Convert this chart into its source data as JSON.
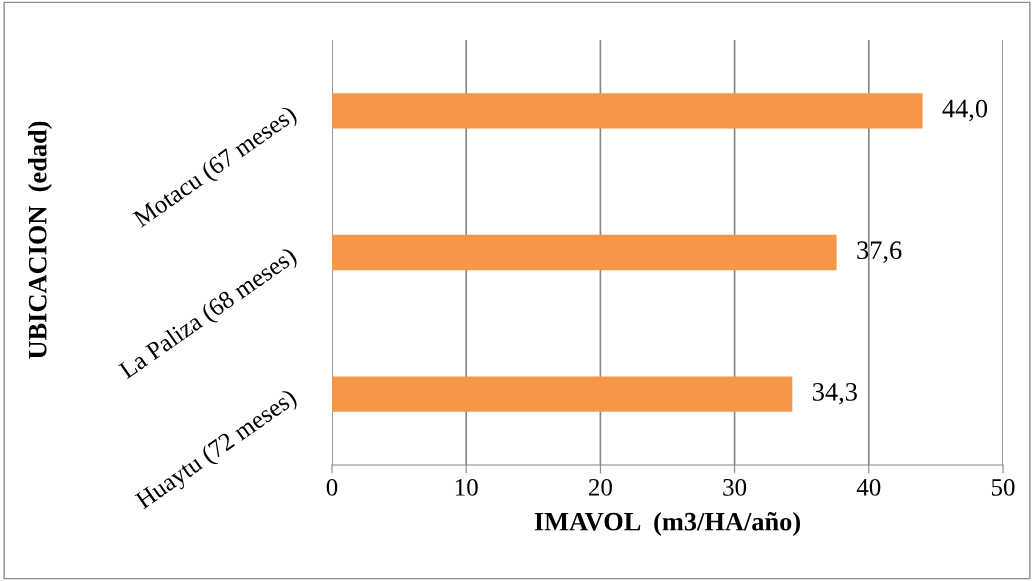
{
  "chart_data": {
    "type": "bar",
    "orientation": "horizontal",
    "xlabel": "IMAVOL  (m3/HA/año)",
    "ylabel": "UBICACION  (edad)",
    "categories": [
      "Motacu (67 meses)",
      "La Paliza (68 meses)",
      "Huaytu (72 meses)"
    ],
    "values": [
      44.0,
      37.6,
      34.3
    ],
    "value_labels": [
      "44,0",
      "37,6",
      "34,3"
    ],
    "color": "#f79646",
    "xlim": [
      0,
      50
    ],
    "xticks": [
      0,
      10,
      20,
      30,
      40,
      50
    ],
    "grid": "x"
  }
}
